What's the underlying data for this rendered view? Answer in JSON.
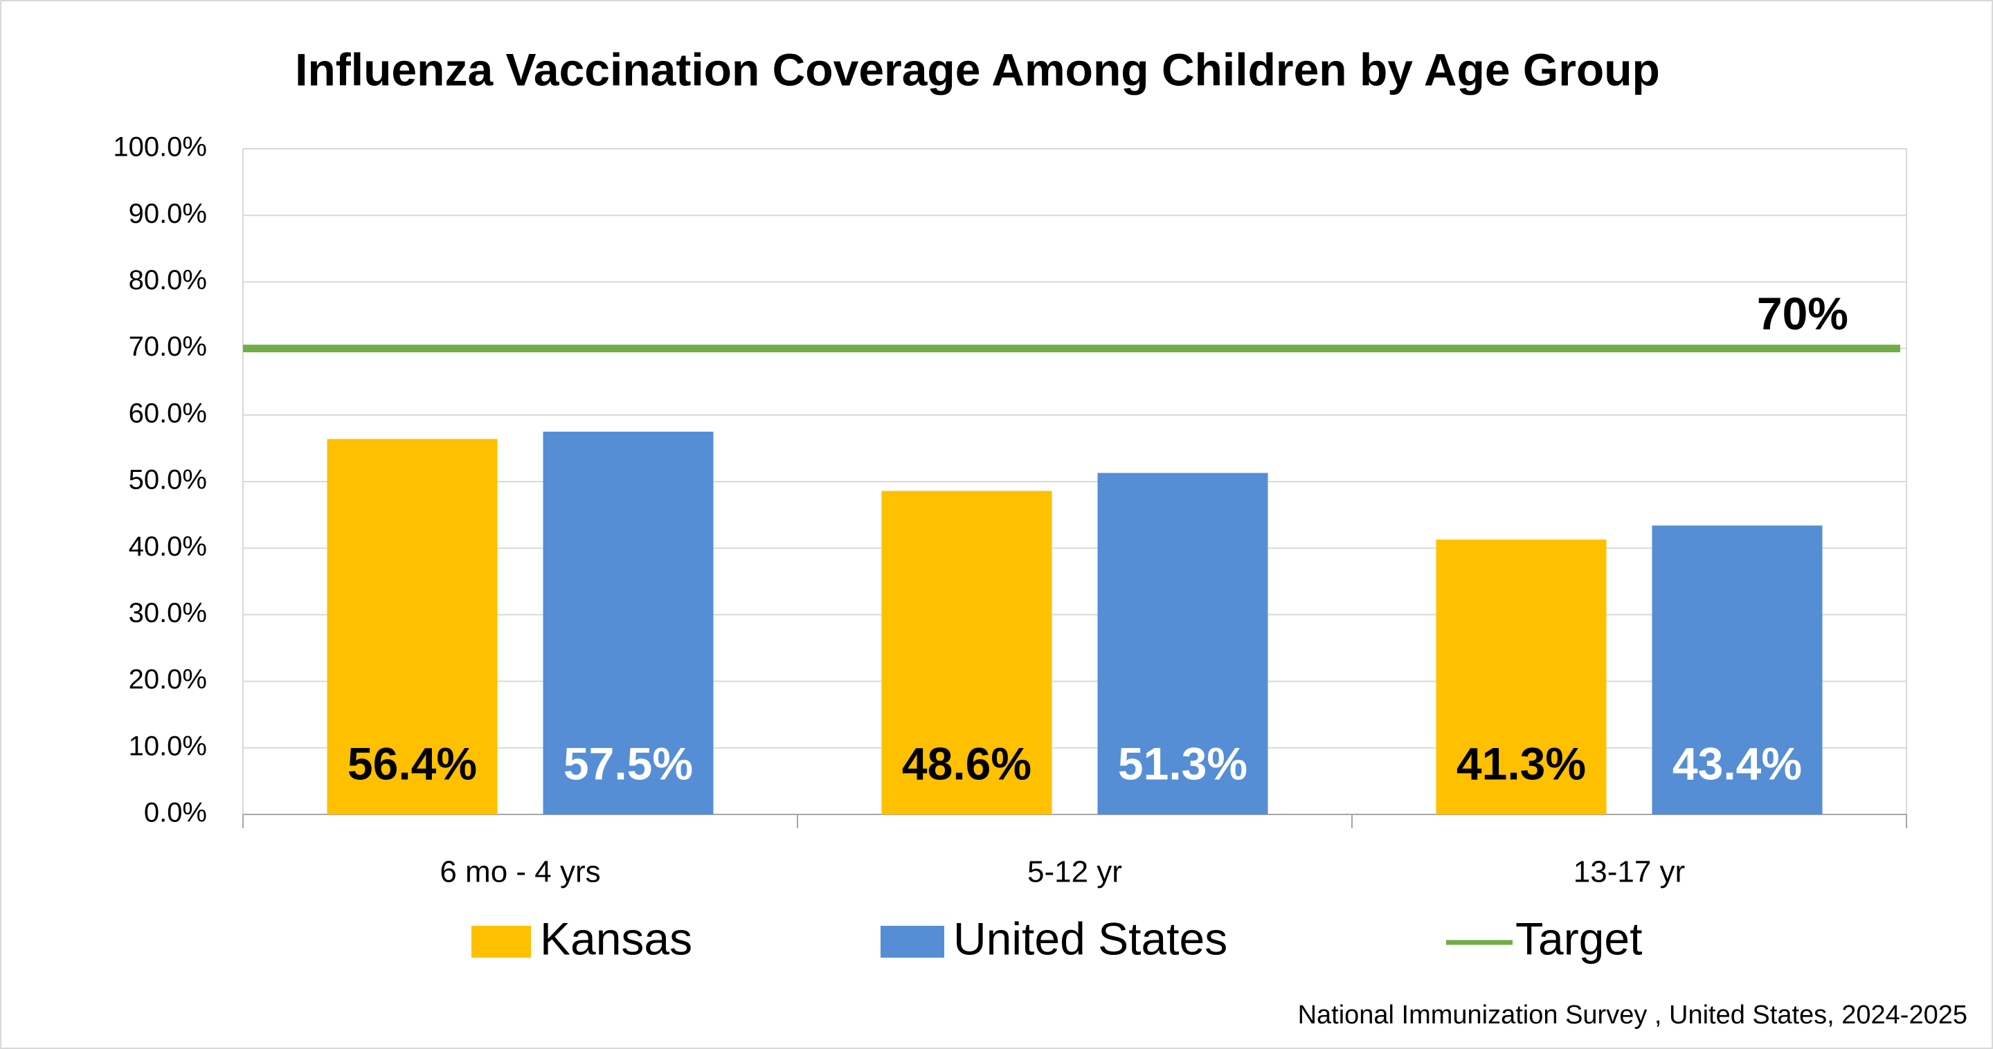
{
  "chart_data": {
    "type": "bar",
    "title": "Influenza Vaccination Coverage Among Children by Age Group",
    "categories": [
      "6 mo - 4 yrs",
      "5-12 yr",
      "13-17 yr"
    ],
    "series": [
      {
        "name": "Kansas",
        "color": "#ffc000",
        "label_color": "#000000",
        "values": [
          56.4,
          48.6,
          41.3
        ],
        "value_labels": [
          "56.4%",
          "48.6%",
          "41.3%"
        ]
      },
      {
        "name": "United States",
        "color": "#558ed5",
        "label_color": "#ffffff",
        "values": [
          57.5,
          51.3,
          43.4
        ],
        "value_labels": [
          "57.5%",
          "51.3%",
          "43.4%"
        ]
      }
    ],
    "target": {
      "name": "Target",
      "value": 70,
      "label": "70%",
      "color": "#70ad47"
    },
    "ylim": [
      0,
      100
    ],
    "yticks": [
      {
        "value": 0,
        "label": "0.0%"
      },
      {
        "value": 10,
        "label": "10.0%"
      },
      {
        "value": 20,
        "label": "20.0%"
      },
      {
        "value": 30,
        "label": "30.0%"
      },
      {
        "value": 40,
        "label": "40.0%"
      },
      {
        "value": 50,
        "label": "50.0%"
      },
      {
        "value": 60,
        "label": "60.0%"
      },
      {
        "value": 70,
        "label": "70.0%"
      },
      {
        "value": 80,
        "label": "80.0%"
      },
      {
        "value": 90,
        "label": "90.0%"
      },
      {
        "value": 100,
        "label": "100.0%"
      }
    ],
    "grid": true,
    "source": "National Immunization Survey , United States, 2024-2025"
  }
}
